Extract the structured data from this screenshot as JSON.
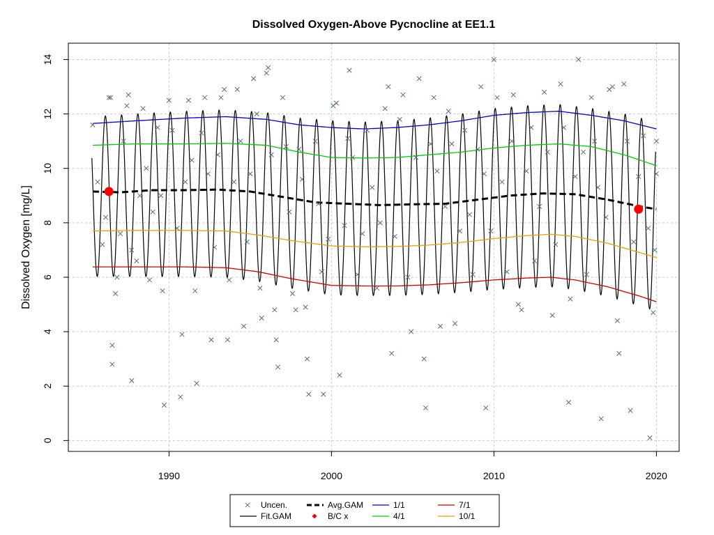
{
  "chart_data": {
    "type": "scatter",
    "title": "Dissolved Oxygen-Above Pycnocline at EE1.1",
    "xlabel": "",
    "ylabel": "Dissolved Oxygen [mg/L]",
    "xlim": [
      1983.8,
      2021.4
    ],
    "ylim": [
      -0.4,
      14.6
    ],
    "xticks": [
      1990,
      2000,
      2010,
      2020
    ],
    "yticks": [
      0,
      2,
      4,
      6,
      8,
      10,
      12,
      14
    ],
    "grid": true,
    "legend_position": "bottom",
    "observations": {
      "name": "Uncen.",
      "color": "#5a6a80",
      "points": [
        [
          1985.3,
          11.6
        ],
        [
          1985.6,
          9.5
        ],
        [
          1985.9,
          7.2
        ],
        [
          1986.1,
          8.2
        ],
        [
          1986.3,
          12.6
        ],
        [
          1986.4,
          12.6
        ],
        [
          1986.5,
          3.5
        ],
        [
          1986.5,
          2.8
        ],
        [
          1986.7,
          5.4
        ],
        [
          1986.8,
          6.0
        ],
        [
          1987.0,
          7.6
        ],
        [
          1987.2,
          11.0
        ],
        [
          1987.4,
          12.3
        ],
        [
          1987.5,
          12.7
        ],
        [
          1987.7,
          7.0
        ],
        [
          1987.7,
          2.2
        ],
        [
          1988.0,
          6.6
        ],
        [
          1988.2,
          9.0
        ],
        [
          1988.4,
          12.2
        ],
        [
          1988.6,
          10.0
        ],
        [
          1988.8,
          5.9
        ],
        [
          1989.0,
          8.4
        ],
        [
          1989.3,
          11.5
        ],
        [
          1989.5,
          9.0
        ],
        [
          1989.6,
          5.5
        ],
        [
          1989.7,
          1.3
        ],
        [
          1990.0,
          12.5
        ],
        [
          1990.2,
          11.4
        ],
        [
          1990.5,
          7.8
        ],
        [
          1990.7,
          1.6
        ],
        [
          1990.8,
          3.9
        ],
        [
          1991.0,
          9.5
        ],
        [
          1991.2,
          12.5
        ],
        [
          1991.4,
          10.3
        ],
        [
          1991.6,
          5.5
        ],
        [
          1991.7,
          2.1
        ],
        [
          1992.0,
          11.3
        ],
        [
          1992.2,
          12.6
        ],
        [
          1992.4,
          9.8
        ],
        [
          1992.6,
          3.7
        ],
        [
          1992.8,
          7.1
        ],
        [
          1993.0,
          10.5
        ],
        [
          1993.2,
          12.6
        ],
        [
          1993.4,
          12.9
        ],
        [
          1993.6,
          3.7
        ],
        [
          1993.7,
          5.9
        ],
        [
          1994.0,
          9.5
        ],
        [
          1994.2,
          12.9
        ],
        [
          1994.4,
          11.0
        ],
        [
          1994.6,
          4.2
        ],
        [
          1994.8,
          7.3
        ],
        [
          1995.0,
          9.8
        ],
        [
          1995.2,
          13.3
        ],
        [
          1995.4,
          12.0
        ],
        [
          1995.6,
          5.6
        ],
        [
          1995.7,
          4.5
        ],
        [
          1996.0,
          13.5
        ],
        [
          1996.1,
          13.7
        ],
        [
          1996.3,
          10.5
        ],
        [
          1996.5,
          4.8
        ],
        [
          1996.6,
          3.7
        ],
        [
          1996.7,
          2.7
        ],
        [
          1997.0,
          12.6
        ],
        [
          1997.2,
          10.8
        ],
        [
          1997.4,
          8.4
        ],
        [
          1997.6,
          5.4
        ],
        [
          1997.8,
          4.8
        ],
        [
          1998.0,
          10.7
        ],
        [
          1998.2,
          9.6
        ],
        [
          1998.4,
          4.9
        ],
        [
          1998.5,
          3.0
        ],
        [
          1998.6,
          1.7
        ],
        [
          1999.0,
          11.0
        ],
        [
          1999.2,
          8.7
        ],
        [
          1999.4,
          6.2
        ],
        [
          1999.5,
          1.7
        ],
        [
          1999.8,
          7.4
        ],
        [
          2000.1,
          12.3
        ],
        [
          2000.3,
          12.4
        ],
        [
          2000.5,
          2.4
        ],
        [
          2000.8,
          7.9
        ],
        [
          2001.0,
          11.1
        ],
        [
          2001.1,
          13.6
        ],
        [
          2001.3,
          10.4
        ],
        [
          2001.6,
          6.1
        ],
        [
          2001.9,
          7.6
        ],
        [
          2002.2,
          11.4
        ],
        [
          2002.5,
          9.3
        ],
        [
          2002.8,
          5.6
        ],
        [
          2003.0,
          8.0
        ],
        [
          2003.3,
          12.2
        ],
        [
          2003.5,
          13.0
        ],
        [
          2003.7,
          3.2
        ],
        [
          2003.9,
          7.5
        ],
        [
          2004.2,
          11.8
        ],
        [
          2004.4,
          12.7
        ],
        [
          2004.7,
          6.0
        ],
        [
          2004.9,
          4.0
        ],
        [
          2005.2,
          10.4
        ],
        [
          2005.4,
          13.3
        ],
        [
          2005.7,
          3.0
        ],
        [
          2005.8,
          1.2
        ],
        [
          2006.1,
          10.9
        ],
        [
          2006.3,
          12.6
        ],
        [
          2006.5,
          9.9
        ],
        [
          2006.7,
          4.2
        ],
        [
          2007.0,
          8.6
        ],
        [
          2007.2,
          12.1
        ],
        [
          2007.4,
          10.9
        ],
        [
          2007.6,
          4.3
        ],
        [
          2007.9,
          7.7
        ],
        [
          2008.2,
          11.4
        ],
        [
          2008.5,
          8.3
        ],
        [
          2008.7,
          6.1
        ],
        [
          2009.0,
          10.7
        ],
        [
          2009.2,
          13.0
        ],
        [
          2009.4,
          9.8
        ],
        [
          2009.5,
          1.2
        ],
        [
          2009.8,
          7.7
        ],
        [
          2010.0,
          14.0
        ],
        [
          2010.2,
          12.6
        ],
        [
          2010.5,
          9.5
        ],
        [
          2010.8,
          6.2
        ],
        [
          2011.1,
          11.0
        ],
        [
          2011.2,
          12.7
        ],
        [
          2011.5,
          5.0
        ],
        [
          2011.7,
          4.8
        ],
        [
          2012.0,
          9.9
        ],
        [
          2012.3,
          11.5
        ],
        [
          2012.5,
          6.6
        ],
        [
          2012.8,
          8.6
        ],
        [
          2013.1,
          12.8
        ],
        [
          2013.3,
          10.6
        ],
        [
          2013.6,
          4.6
        ],
        [
          2013.8,
          7.2
        ],
        [
          2014.1,
          13.1
        ],
        [
          2014.3,
          11.5
        ],
        [
          2014.6,
          1.4
        ],
        [
          2014.7,
          5.2
        ],
        [
          2015.0,
          9.7
        ],
        [
          2015.2,
          14.0
        ],
        [
          2015.5,
          10.6
        ],
        [
          2015.7,
          6.1
        ],
        [
          2016.0,
          12.6
        ],
        [
          2016.2,
          11.0
        ],
        [
          2016.4,
          9.3
        ],
        [
          2016.6,
          0.8
        ],
        [
          2016.9,
          8.2
        ],
        [
          2017.1,
          12.9
        ],
        [
          2017.3,
          13.0
        ],
        [
          2017.6,
          4.4
        ],
        [
          2017.7,
          3.2
        ],
        [
          2018.0,
          13.1
        ],
        [
          2018.2,
          11.0
        ],
        [
          2018.4,
          1.1
        ],
        [
          2018.6,
          7.3
        ],
        [
          2018.9,
          9.7
        ],
        [
          2019.2,
          11.2
        ],
        [
          2019.5,
          7.8
        ],
        [
          2019.6,
          0.1
        ],
        [
          2019.8,
          4.7
        ],
        [
          2020.0,
          11.0
        ],
        [
          2020.0,
          9.8
        ],
        [
          2019.9,
          7.0
        ]
      ]
    },
    "fit_gam": {
      "name": "Fit.GAM",
      "color": "#000000",
      "x_start": 1985.25,
      "x_end": 2019.95,
      "cycle_years": 1
    },
    "avg_gam": {
      "name": "Avg.GAM",
      "color": "#000000",
      "points": [
        [
          1985.3,
          9.15
        ],
        [
          1987,
          9.12
        ],
        [
          1989,
          9.2
        ],
        [
          1991,
          9.2
        ],
        [
          1993,
          9.22
        ],
        [
          1995,
          9.15
        ],
        [
          1997,
          8.95
        ],
        [
          1999,
          8.75
        ],
        [
          2001,
          8.7
        ],
        [
          2003,
          8.65
        ],
        [
          2005,
          8.68
        ],
        [
          2007,
          8.7
        ],
        [
          2009,
          8.85
        ],
        [
          2011,
          9.0
        ],
        [
          2013,
          9.08
        ],
        [
          2015,
          9.05
        ],
        [
          2017,
          8.85
        ],
        [
          2019,
          8.6
        ],
        [
          2020,
          8.5
        ]
      ]
    },
    "bc_points": {
      "name": "B/C x",
      "color": "#ff0000",
      "points": [
        [
          1986.3,
          9.15
        ],
        [
          2018.9,
          8.5
        ]
      ]
    },
    "seasonal_series": [
      {
        "name": "1/1",
        "color": "#0000cc",
        "points": [
          [
            1985.3,
            11.65
          ],
          [
            1988,
            11.75
          ],
          [
            1991,
            11.85
          ],
          [
            1993.5,
            11.9
          ],
          [
            1996,
            11.8
          ],
          [
            1998,
            11.6
          ],
          [
            2000,
            11.5
          ],
          [
            2002,
            11.45
          ],
          [
            2004,
            11.5
          ],
          [
            2006,
            11.6
          ],
          [
            2008,
            11.75
          ],
          [
            2010,
            11.95
          ],
          [
            2012,
            12.05
          ],
          [
            2014,
            12.1
          ],
          [
            2016,
            11.95
          ],
          [
            2018,
            11.75
          ],
          [
            2020,
            11.45
          ]
        ]
      },
      {
        "name": "4/1",
        "color": "#00cc00",
        "points": [
          [
            1985.3,
            10.85
          ],
          [
            1988,
            10.9
          ],
          [
            1991,
            10.9
          ],
          [
            1993.5,
            10.92
          ],
          [
            1996,
            10.85
          ],
          [
            1998,
            10.6
          ],
          [
            2000,
            10.4
          ],
          [
            2002,
            10.38
          ],
          [
            2004,
            10.4
          ],
          [
            2006,
            10.5
          ],
          [
            2008,
            10.6
          ],
          [
            2010,
            10.75
          ],
          [
            2012,
            10.85
          ],
          [
            2014,
            10.9
          ],
          [
            2016,
            10.8
          ],
          [
            2018,
            10.5
          ],
          [
            2020,
            10.1
          ]
        ]
      },
      {
        "name": "7/1",
        "color": "#cc0000",
        "points": [
          [
            1985.3,
            6.38
          ],
          [
            1988,
            6.38
          ],
          [
            1991,
            6.38
          ],
          [
            1993.5,
            6.35
          ],
          [
            1995.5,
            6.2
          ],
          [
            1997.5,
            5.95
          ],
          [
            2000,
            5.7
          ],
          [
            2002,
            5.68
          ],
          [
            2004,
            5.68
          ],
          [
            2006,
            5.72
          ],
          [
            2008,
            5.8
          ],
          [
            2010,
            5.9
          ],
          [
            2012,
            5.97
          ],
          [
            2013.5,
            6.0
          ],
          [
            2015,
            5.9
          ],
          [
            2017,
            5.65
          ],
          [
            2019,
            5.3
          ],
          [
            2020,
            5.1
          ]
        ]
      },
      {
        "name": "10/1",
        "color": "#e8a000",
        "points": [
          [
            1985.3,
            7.7
          ],
          [
            1988,
            7.72
          ],
          [
            1991,
            7.72
          ],
          [
            1993.5,
            7.7
          ],
          [
            1995.5,
            7.55
          ],
          [
            1997.5,
            7.35
          ],
          [
            2000,
            7.15
          ],
          [
            2002,
            7.12
          ],
          [
            2004,
            7.13
          ],
          [
            2006,
            7.18
          ],
          [
            2008,
            7.28
          ],
          [
            2010,
            7.42
          ],
          [
            2012,
            7.53
          ],
          [
            2013.5,
            7.58
          ],
          [
            2015,
            7.5
          ],
          [
            2017,
            7.25
          ],
          [
            2019,
            6.9
          ],
          [
            2020,
            6.72
          ]
        ]
      }
    ],
    "legend": [
      {
        "label": "Uncen.",
        "symbol": "x",
        "color": "#5a6a80"
      },
      {
        "label": "Avg.GAM",
        "symbol": "dash",
        "color": "#000000"
      },
      {
        "label": "1/1",
        "symbol": "line",
        "color": "#0000cc"
      },
      {
        "label": "7/1",
        "symbol": "line",
        "color": "#cc0000"
      },
      {
        "label": "Fit.GAM",
        "symbol": "line",
        "color": "#000000"
      },
      {
        "label": "B/C x",
        "symbol": "diamond",
        "color": "#ff0000"
      },
      {
        "label": "4/1",
        "symbol": "line",
        "color": "#00cc00"
      },
      {
        "label": "10/1",
        "symbol": "line",
        "color": "#e8a000"
      }
    ]
  }
}
